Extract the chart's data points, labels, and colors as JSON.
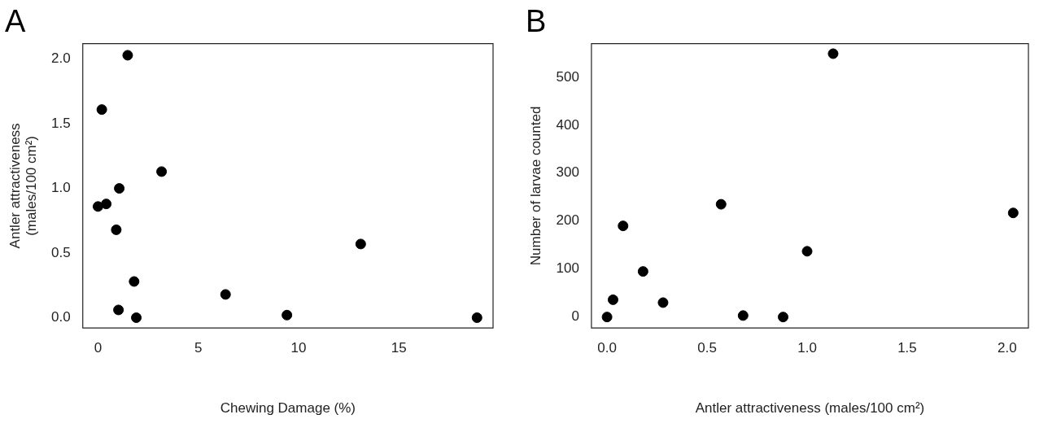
{
  "chart_data": [
    {
      "type": "scatter",
      "title": "A",
      "xlabel": "Chewing Damage (%)",
      "ylabel": "Antler attractiveness\n(males/100 cm²)",
      "x": [
        1.48,
        0.19,
        3.17,
        1.06,
        0.0,
        0.41,
        0.91,
        1.8,
        1.02,
        1.91,
        6.36,
        9.42,
        13.1,
        18.9
      ],
      "values": [
        2.03,
        1.61,
        1.13,
        1.0,
        0.86,
        0.88,
        0.68,
        0.28,
        0.06,
        0.0,
        0.18,
        0.02,
        0.57,
        0.0
      ],
      "color": "#000000",
      "marker": "circle",
      "xlim": [
        -0.76,
        19.7
      ],
      "ylim": [
        -0.08,
        2.12
      ],
      "xticks": [
        0,
        5,
        10,
        15
      ],
      "yticks": [
        {
          "value": 0,
          "label": "0.0"
        },
        {
          "value": 0.5,
          "label": "0.5"
        },
        {
          "value": 1,
          "label": "1.0"
        },
        {
          "value": 1.5,
          "label": "1.5"
        },
        {
          "value": 2,
          "label": "2.0"
        }
      ]
    },
    {
      "type": "scatter",
      "title": "B",
      "xlabel": "Antler attractiveness (males/100 cm²)",
      "ylabel": "Number of larvae counted",
      "x": [
        0.0,
        0.03,
        0.08,
        0.18,
        0.28,
        0.57,
        0.68,
        0.88,
        1.0,
        1.13,
        2.03
      ],
      "values": [
        0,
        36,
        190,
        95,
        30,
        235,
        3,
        0,
        137,
        549,
        217
      ],
      "color": "#000000",
      "marker": "circle",
      "xlim": [
        -0.078,
        2.106
      ],
      "ylim": [
        -23,
        570
      ],
      "xticks": [
        {
          "value": 0,
          "label": "0.0"
        },
        {
          "value": 0.5,
          "label": "0.5"
        },
        {
          "value": 1,
          "label": "1.0"
        },
        {
          "value": 1.5,
          "label": "1.5"
        },
        {
          "value": 2,
          "label": "2.0"
        }
      ],
      "yticks": [
        0,
        100,
        200,
        300,
        400,
        500
      ]
    }
  ]
}
